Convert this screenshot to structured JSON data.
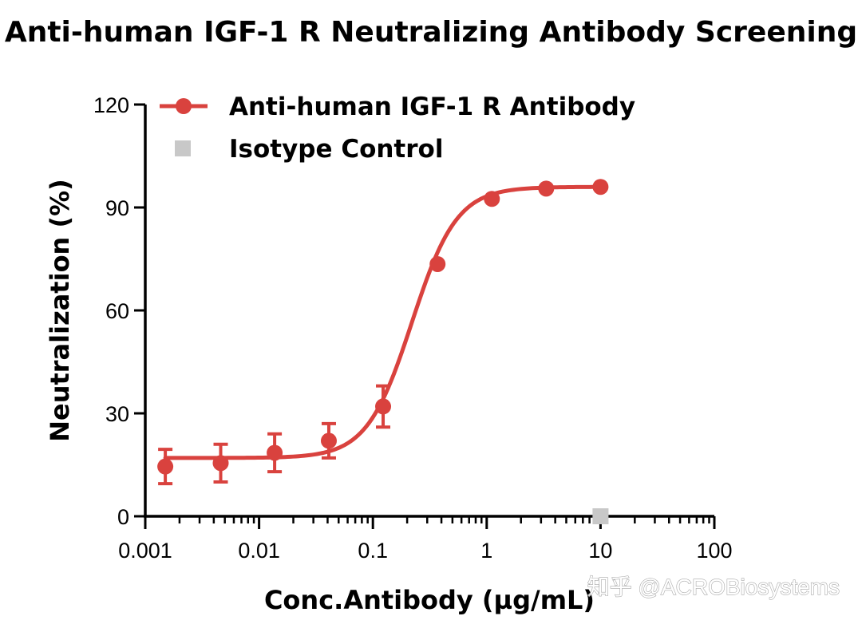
{
  "chart_data": {
    "type": "scatter",
    "title": "Anti-human IGF-1 R Neutralizing Antibody Screening",
    "xlabel": "Conc.Antibody (µg/mL)",
    "ylabel": "Neutralization (%)",
    "xscale": "log",
    "xlim": [
      0.001,
      100
    ],
    "ylim": [
      0,
      120
    ],
    "xticks": [
      0.001,
      0.01,
      0.1,
      1,
      10,
      100
    ],
    "xtick_labels": [
      "0.001",
      "0.01",
      "0.1",
      "1",
      "10",
      "100"
    ],
    "yticks": [
      0,
      30,
      60,
      90,
      120
    ],
    "ytick_labels": [
      "0",
      "30",
      "60",
      "90",
      "120"
    ],
    "grid": false,
    "legend_position": "top-left",
    "series": [
      {
        "name": "Anti-human IGF-1 R Antibody",
        "color": "#d9423e",
        "marker": "circle",
        "x": [
          0.0015,
          0.0046,
          0.0137,
          0.041,
          0.123,
          0.37,
          1.11,
          3.33,
          10
        ],
        "y": [
          14.5,
          15.5,
          18.5,
          22,
          32,
          73.5,
          92.5,
          95.5,
          96
        ],
        "error": [
          5,
          5.5,
          5.5,
          5,
          6,
          0,
          0,
          0,
          0
        ],
        "fit": {
          "model": "4PL",
          "bottom": 17,
          "top": 96,
          "ec50": 0.22,
          "hill": 2.2
        }
      },
      {
        "name": "Isotype Control",
        "color": "#c8c8c8",
        "marker": "square",
        "x": [
          10
        ],
        "y": [
          0
        ]
      }
    ]
  },
  "watermark": {
    "text": "知乎 @ACROBiosystems"
  }
}
